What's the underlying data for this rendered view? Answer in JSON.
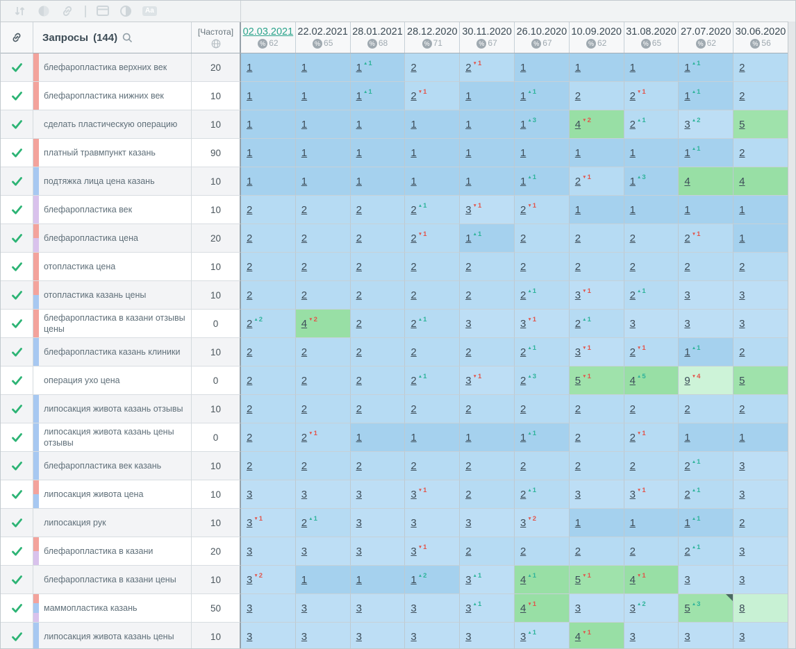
{
  "toolbar": {
    "icons": [
      {
        "name": "sort-icon"
      },
      {
        "name": "mask-circle-icon"
      },
      {
        "name": "link-icon"
      },
      {
        "name": "divider"
      },
      {
        "name": "table-panel-icon"
      },
      {
        "name": "contrast-icon"
      },
      {
        "name": "text-case-icon",
        "label": "Aa"
      }
    ]
  },
  "header": {
    "link_column_icon": "chain-icon",
    "queries_label": "Запросы",
    "queries_count": "(144)",
    "search_icon": "magnifier-icon",
    "frequency_label": "[Частота]",
    "frequency_icon": "globe-icon",
    "dates": [
      {
        "label": "02.03.2021",
        "visibility": 62,
        "current": true
      },
      {
        "label": "22.02.2021",
        "visibility": 65
      },
      {
        "label": "28.01.2021",
        "visibility": 68
      },
      {
        "label": "28.12.2020",
        "visibility": 71
      },
      {
        "label": "30.11.2020",
        "visibility": 67
      },
      {
        "label": "26.10.2020",
        "visibility": 67
      },
      {
        "label": "10.09.2020",
        "visibility": 62
      },
      {
        "label": "31.08.2020",
        "visibility": 65
      },
      {
        "label": "27.07.2020",
        "visibility": 62
      },
      {
        "label": "30.06.2020",
        "visibility": 56
      }
    ]
  },
  "colors": {
    "accent_teal": "#2ba38b",
    "delta_up": "#2eb39a",
    "delta_down": "#e2544a",
    "checkmark": "#2db475",
    "position_fill": {
      "1": "#a5d1ee",
      "2": "#b6dbf3",
      "3": "#bddef5",
      "4": "#98dfa5",
      "5": "#9fe2ab",
      "8": "#c8f1d4",
      "9": "#cdf3d8"
    },
    "tags": {
      "salmon": "#f3a39c",
      "blue": "#a7c8f1",
      "lavender": "#d9c2ec"
    }
  },
  "rows": [
    {
      "keyword": "блефаропластика верхних век",
      "frequency": "20",
      "tags": [
        "salmon"
      ],
      "cells": [
        {
          "v": 1
        },
        {
          "v": 1
        },
        {
          "v": 1,
          "d": 1
        },
        {
          "v": 2
        },
        {
          "v": 2,
          "d": -1
        },
        {
          "v": 1
        },
        {
          "v": 1
        },
        {
          "v": 1
        },
        {
          "v": 1,
          "d": 1
        },
        {
          "v": 2
        }
      ]
    },
    {
      "keyword": "блефаропластика нижних век",
      "frequency": "10",
      "tags": [
        "salmon"
      ],
      "cells": [
        {
          "v": 1
        },
        {
          "v": 1
        },
        {
          "v": 1,
          "d": 1
        },
        {
          "v": 2,
          "d": -1
        },
        {
          "v": 1
        },
        {
          "v": 1,
          "d": 1
        },
        {
          "v": 2
        },
        {
          "v": 2,
          "d": -1
        },
        {
          "v": 1,
          "d": 1
        },
        {
          "v": 2
        }
      ]
    },
    {
      "keyword": "сделать пластическую операцию",
      "frequency": "10",
      "tags": [],
      "cells": [
        {
          "v": 1
        },
        {
          "v": 1
        },
        {
          "v": 1
        },
        {
          "v": 1
        },
        {
          "v": 1
        },
        {
          "v": 1,
          "d": 3
        },
        {
          "v": 4,
          "d": -2
        },
        {
          "v": 2,
          "d": 1
        },
        {
          "v": 3,
          "d": 2
        },
        {
          "v": 5
        }
      ]
    },
    {
      "keyword": "платный травмпункт казань",
      "frequency": "90",
      "tags": [
        "salmon"
      ],
      "cells": [
        {
          "v": 1
        },
        {
          "v": 1
        },
        {
          "v": 1
        },
        {
          "v": 1
        },
        {
          "v": 1
        },
        {
          "v": 1
        },
        {
          "v": 1
        },
        {
          "v": 1
        },
        {
          "v": 1,
          "d": 1
        },
        {
          "v": 2
        }
      ]
    },
    {
      "keyword": "подтяжка лица цена казань",
      "frequency": "10",
      "tags": [
        "blue"
      ],
      "cells": [
        {
          "v": 1
        },
        {
          "v": 1
        },
        {
          "v": 1
        },
        {
          "v": 1
        },
        {
          "v": 1
        },
        {
          "v": 1,
          "d": 1
        },
        {
          "v": 2,
          "d": -1
        },
        {
          "v": 1,
          "d": 3
        },
        {
          "v": 4
        },
        {
          "v": 4
        }
      ]
    },
    {
      "keyword": "блефаропластика век",
      "frequency": "10",
      "tags": [
        "lavender"
      ],
      "cells": [
        {
          "v": 2
        },
        {
          "v": 2
        },
        {
          "v": 2
        },
        {
          "v": 2,
          "d": 1
        },
        {
          "v": 3,
          "d": -1
        },
        {
          "v": 2,
          "d": -1
        },
        {
          "v": 1
        },
        {
          "v": 1
        },
        {
          "v": 1
        },
        {
          "v": 1
        }
      ]
    },
    {
      "keyword": "блефаропластика цена",
      "frequency": "20",
      "tags": [
        "salmon",
        "lavender"
      ],
      "cells": [
        {
          "v": 2
        },
        {
          "v": 2
        },
        {
          "v": 2
        },
        {
          "v": 2,
          "d": -1
        },
        {
          "v": 1,
          "d": 1
        },
        {
          "v": 2
        },
        {
          "v": 2
        },
        {
          "v": 2
        },
        {
          "v": 2,
          "d": -1
        },
        {
          "v": 1
        }
      ]
    },
    {
      "keyword": "отопластика цена",
      "frequency": "10",
      "tags": [
        "salmon"
      ],
      "cells": [
        {
          "v": 2
        },
        {
          "v": 2
        },
        {
          "v": 2
        },
        {
          "v": 2
        },
        {
          "v": 2
        },
        {
          "v": 2
        },
        {
          "v": 2
        },
        {
          "v": 2
        },
        {
          "v": 2
        },
        {
          "v": 2
        }
      ]
    },
    {
      "keyword": "отопластика казань цены",
      "frequency": "10",
      "tags": [
        "salmon",
        "blue"
      ],
      "cells": [
        {
          "v": 2
        },
        {
          "v": 2
        },
        {
          "v": 2
        },
        {
          "v": 2
        },
        {
          "v": 2
        },
        {
          "v": 2,
          "d": 1
        },
        {
          "v": 3,
          "d": -1
        },
        {
          "v": 2,
          "d": 1
        },
        {
          "v": 3
        },
        {
          "v": 3
        }
      ]
    },
    {
      "keyword": "блефаропластика в казани отзывы цены",
      "frequency": "0",
      "tags": [
        "salmon"
      ],
      "cells": [
        {
          "v": 2,
          "d": 2
        },
        {
          "v": 4,
          "d": -2
        },
        {
          "v": 2
        },
        {
          "v": 2,
          "d": 1
        },
        {
          "v": 3
        },
        {
          "v": 3,
          "d": -1
        },
        {
          "v": 2,
          "d": 1
        },
        {
          "v": 3
        },
        {
          "v": 3
        },
        {
          "v": 3
        }
      ]
    },
    {
      "keyword": "блефаропластика казань клиники",
      "frequency": "10",
      "tags": [
        "blue"
      ],
      "cells": [
        {
          "v": 2
        },
        {
          "v": 2
        },
        {
          "v": 2
        },
        {
          "v": 2
        },
        {
          "v": 2
        },
        {
          "v": 2,
          "d": 1
        },
        {
          "v": 3,
          "d": -1
        },
        {
          "v": 2,
          "d": -1
        },
        {
          "v": 1,
          "d": 1
        },
        {
          "v": 2
        }
      ]
    },
    {
      "keyword": "операция ухо цена",
      "frequency": "0",
      "tags": [],
      "cells": [
        {
          "v": 2
        },
        {
          "v": 2
        },
        {
          "v": 2
        },
        {
          "v": 2,
          "d": 1
        },
        {
          "v": 3,
          "d": -1
        },
        {
          "v": 2,
          "d": 3
        },
        {
          "v": 5,
          "d": -1
        },
        {
          "v": 4,
          "d": 5
        },
        {
          "v": 9,
          "d": -4
        },
        {
          "v": 5
        }
      ]
    },
    {
      "keyword": "липосакция живота казань отзывы",
      "frequency": "10",
      "tags": [
        "blue"
      ],
      "cells": [
        {
          "v": 2
        },
        {
          "v": 2
        },
        {
          "v": 2
        },
        {
          "v": 2
        },
        {
          "v": 2
        },
        {
          "v": 2
        },
        {
          "v": 2
        },
        {
          "v": 2
        },
        {
          "v": 2
        },
        {
          "v": 2
        }
      ]
    },
    {
      "keyword": "липосакция живота казань цены отзывы",
      "frequency": "0",
      "tags": [
        "blue"
      ],
      "cells": [
        {
          "v": 2
        },
        {
          "v": 2,
          "d": -1
        },
        {
          "v": 1
        },
        {
          "v": 1
        },
        {
          "v": 1
        },
        {
          "v": 1,
          "d": 1
        },
        {
          "v": 2
        },
        {
          "v": 2,
          "d": -1
        },
        {
          "v": 1
        },
        {
          "v": 1
        }
      ]
    },
    {
      "keyword": "блефаропластика век казань",
      "frequency": "10",
      "tags": [
        "blue"
      ],
      "cells": [
        {
          "v": 2
        },
        {
          "v": 2
        },
        {
          "v": 2
        },
        {
          "v": 2
        },
        {
          "v": 2
        },
        {
          "v": 2
        },
        {
          "v": 2
        },
        {
          "v": 2
        },
        {
          "v": 2,
          "d": 1
        },
        {
          "v": 3
        }
      ]
    },
    {
      "keyword": "липосакция живота цена",
      "frequency": "10",
      "tags": [
        "salmon",
        "blue"
      ],
      "cells": [
        {
          "v": 3
        },
        {
          "v": 3
        },
        {
          "v": 3
        },
        {
          "v": 3,
          "d": -1
        },
        {
          "v": 2
        },
        {
          "v": 2,
          "d": 1
        },
        {
          "v": 3
        },
        {
          "v": 3,
          "d": -1
        },
        {
          "v": 2,
          "d": 1
        },
        {
          "v": 3
        }
      ]
    },
    {
      "keyword": "липосакция рук",
      "frequency": "10",
      "tags": [],
      "cells": [
        {
          "v": 3,
          "d": -1
        },
        {
          "v": 2,
          "d": 1
        },
        {
          "v": 3
        },
        {
          "v": 3
        },
        {
          "v": 3
        },
        {
          "v": 3,
          "d": -2
        },
        {
          "v": 1
        },
        {
          "v": 1
        },
        {
          "v": 1,
          "d": 1
        },
        {
          "v": 2
        }
      ]
    },
    {
      "keyword": "блефаропластика в казани",
      "frequency": "20",
      "tags": [
        "salmon",
        "lavender"
      ],
      "cells": [
        {
          "v": 3
        },
        {
          "v": 3
        },
        {
          "v": 3
        },
        {
          "v": 3,
          "d": -1
        },
        {
          "v": 2
        },
        {
          "v": 2
        },
        {
          "v": 2
        },
        {
          "v": 2
        },
        {
          "v": 2,
          "d": 1
        },
        {
          "v": 3
        }
      ]
    },
    {
      "keyword": "блефаропластика в казани цены",
      "frequency": "10",
      "tags": [],
      "cells": [
        {
          "v": 3,
          "d": -2
        },
        {
          "v": 1
        },
        {
          "v": 1
        },
        {
          "v": 1,
          "d": 2
        },
        {
          "v": 3,
          "d": 1
        },
        {
          "v": 4,
          "d": 1
        },
        {
          "v": 5,
          "d": -1
        },
        {
          "v": 4,
          "d": -1
        },
        {
          "v": 3
        },
        {
          "v": 3
        }
      ]
    },
    {
      "keyword": "маммопластика казань",
      "frequency": "50",
      "tags": [
        "salmon",
        "blue",
        "lavender"
      ],
      "cells": [
        {
          "v": 3
        },
        {
          "v": 3
        },
        {
          "v": 3
        },
        {
          "v": 3
        },
        {
          "v": 3,
          "d": 1
        },
        {
          "v": 4,
          "d": -1
        },
        {
          "v": 3
        },
        {
          "v": 3,
          "d": 2
        },
        {
          "v": 5,
          "d": 3,
          "note": true
        },
        {
          "v": 8
        }
      ]
    },
    {
      "keyword": "липосакция живота казань цены",
      "frequency": "10",
      "tags": [
        "blue"
      ],
      "cells": [
        {
          "v": 3
        },
        {
          "v": 3
        },
        {
          "v": 3
        },
        {
          "v": 3
        },
        {
          "v": 3
        },
        {
          "v": 3,
          "d": 1
        },
        {
          "v": 4,
          "d": -1
        },
        {
          "v": 3
        },
        {
          "v": 3
        },
        {
          "v": 3
        }
      ]
    }
  ]
}
